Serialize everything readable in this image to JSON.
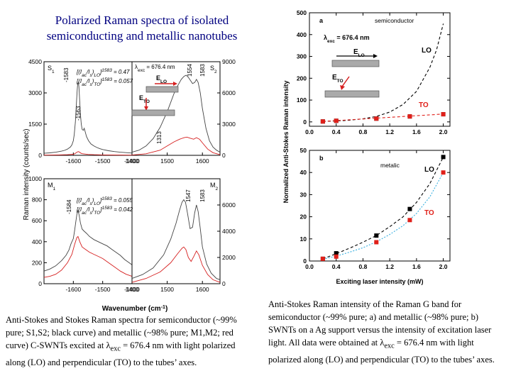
{
  "title_line1": "Polarized Raman spectra of isolated",
  "title_line2": "semiconducting and metallic  nanotubes",
  "caption_left_parts": [
    "Anti-Stokes and Stokes Raman spectra for semiconductor (~99% pure; S1,S2; black curve) and metallic (~98% pure; M1,M2; red curve) C-SWNTs excited at ",
    "λ",
    "exc",
    " = 676.4 nm with light polarized along (LO) and perpendicular (TO) to the tubes’ axes."
  ],
  "caption_right_parts": [
    "Anti-Stokes Raman intensity of the Raman G band for semiconductor (~99% pure; a) and metallic (~98% pure; b) SWNTs on a Ag support versus the intensity of excitation laser light. All data were obtained at ",
    "λ",
    "exc",
    " = 676.4 nm with light polarized along (LO) and perpendicular (TO) to the tubes’ axes."
  ],
  "colors": {
    "black_curve": "#444444",
    "red_curve": "#d62020",
    "title": "#000080",
    "lo_curve": "#000000",
    "to_curve": "#e0201a",
    "to_fit_b": "#3ab0e0"
  },
  "chart_data": [
    {
      "type": "line",
      "panel_label": "S1",
      "ylabel": "Raman intensity (counts/sec)",
      "xlabel": "",
      "xlim": [
        -1700,
        -1400
      ],
      "ylim": [
        0,
        4500
      ],
      "xticks": [
        -1600,
        -1500,
        -1400
      ],
      "yticks": [
        0,
        1500,
        3000,
        4500
      ],
      "peak_labels": [
        "-1583",
        "-1563"
      ],
      "ratio_lines": [
        "[(I",
        "ac",
        "/I",
        "s",
        ")",
        "LO",
        "]",
        "1583",
        " = 0.47",
        "[(I",
        "ac",
        "/I",
        "s",
        ")",
        "TO",
        "]",
        "1583",
        " = 0.057"
      ],
      "series": [
        {
          "color": "black",
          "x": [
            -1700,
            -1680,
            -1660,
            -1640,
            -1630,
            -1620,
            -1610,
            -1605,
            -1600,
            -1597,
            -1593,
            -1590,
            -1587,
            -1585,
            -1583,
            -1581,
            -1579,
            -1576,
            -1573,
            -1570,
            -1566,
            -1563,
            -1560,
            -1555,
            -1548,
            -1540,
            -1530,
            -1520,
            -1510,
            -1500,
            -1480,
            -1460,
            -1440,
            -1420,
            -1400
          ],
          "y": [
            100,
            120,
            150,
            200,
            240,
            300,
            400,
            500,
            700,
            1000,
            1600,
            2400,
            3100,
            3450,
            3500,
            3300,
            2800,
            2000,
            1500,
            1250,
            1200,
            1300,
            1150,
            900,
            700,
            550,
            450,
            380,
            320,
            280,
            220,
            180,
            150,
            130,
            110
          ]
        },
        {
          "color": "red",
          "x": [
            -1700,
            -1650,
            -1620,
            -1600,
            -1595,
            -1590,
            -1585,
            -1583,
            -1580,
            -1575,
            -1570,
            -1560,
            -1550,
            -1530,
            -1500,
            -1450,
            -1400
          ],
          "y": [
            10,
            20,
            30,
            50,
            80,
            130,
            170,
            180,
            160,
            110,
            80,
            60,
            45,
            30,
            20,
            15,
            10
          ]
        }
      ]
    },
    {
      "type": "line",
      "panel_label": "S2",
      "xlim": [
        1400,
        1650
      ],
      "ylim": [
        0,
        9000
      ],
      "xticks": [
        1400,
        1500,
        1600
      ],
      "yticks": [
        0,
        3000,
        6000,
        9000
      ],
      "peak_labels": [
        "1554",
        "1583",
        "1313"
      ],
      "series": [
        {
          "color": "black",
          "x": [
            1400,
            1420,
            1440,
            1460,
            1480,
            1500,
            1510,
            1520,
            1530,
            1540,
            1548,
            1554,
            1560,
            1566,
            1572,
            1578,
            1583,
            1588,
            1594,
            1600,
            1610,
            1620,
            1630,
            1640,
            1650
          ],
          "y": [
            300,
            500,
            900,
            1600,
            2700,
            4200,
            5100,
            6000,
            6700,
            7300,
            7600,
            7700,
            7500,
            7200,
            6900,
            7000,
            7300,
            7000,
            6000,
            4500,
            2600,
            1400,
            800,
            500,
            300
          ]
        },
        {
          "color": "red",
          "x": [
            1400,
            1440,
            1480,
            1500,
            1520,
            1535,
            1548,
            1556,
            1565,
            1575,
            1583,
            1592,
            1600,
            1615,
            1630,
            1650
          ],
          "y": [
            30,
            150,
            500,
            900,
            1300,
            1550,
            1700,
            1750,
            1650,
            1550,
            1700,
            1550,
            1200,
            600,
            250,
            60
          ]
        }
      ]
    },
    {
      "type": "line",
      "panel_label": "M1",
      "xlim": [
        -1700,
        -1400
      ],
      "ylim": [
        0,
        1000
      ],
      "xticks": [
        -1600,
        -1500,
        -1400
      ],
      "yticks": [
        0,
        200,
        400,
        600,
        800,
        1000
      ],
      "peak_labels": [
        "-1584"
      ],
      "ratio_lines": [
        "[(I",
        "ac",
        "/I",
        "s",
        ")",
        "LO",
        "]",
        "1583",
        " = 0.055",
        "[(I",
        "ac",
        "/I",
        "s",
        ")",
        "TO",
        "]",
        "1583",
        " = 0.042"
      ],
      "series": [
        {
          "color": "black",
          "x": [
            -1700,
            -1680,
            -1660,
            -1640,
            -1625,
            -1615,
            -1608,
            -1600,
            -1596,
            -1592,
            -1588,
            -1584,
            -1580,
            -1576,
            -1570,
            -1563,
            -1555,
            -1545,
            -1530,
            -1515,
            -1500,
            -1485,
            -1470,
            -1455,
            -1440,
            -1425,
            -1410,
            -1400
          ],
          "y": [
            120,
            140,
            170,
            220,
            270,
            320,
            380,
            430,
            500,
            580,
            660,
            700,
            650,
            580,
            520,
            500,
            480,
            450,
            420,
            400,
            380,
            360,
            330,
            300,
            270,
            230,
            200,
            180
          ]
        },
        {
          "color": "red",
          "x": [
            -1700,
            -1680,
            -1660,
            -1640,
            -1620,
            -1605,
            -1595,
            -1588,
            -1584,
            -1578,
            -1570,
            -1560,
            -1545,
            -1530,
            -1515,
            -1500,
            -1480,
            -1460,
            -1440,
            -1420,
            -1400
          ],
          "y": [
            60,
            70,
            90,
            130,
            200,
            280,
            380,
            440,
            450,
            400,
            350,
            330,
            300,
            280,
            260,
            240,
            200,
            160,
            120,
            90,
            70
          ]
        }
      ]
    },
    {
      "type": "line",
      "panel_label": "M2",
      "xlim": [
        1400,
        1650
      ],
      "ylim": [
        0,
        8000
      ],
      "xticks": [
        1400,
        1500,
        1600
      ],
      "yticks": [
        0,
        2000,
        4000,
        6000
      ],
      "peak_labels": [
        "1547",
        "1583"
      ],
      "series": [
        {
          "color": "black",
          "x": [
            1400,
            1430,
            1460,
            1490,
            1510,
            1525,
            1535,
            1542,
            1547,
            1552,
            1558,
            1565,
            1572,
            1578,
            1583,
            1588,
            1594,
            1600,
            1612,
            1625,
            1640,
            1650
          ],
          "y": [
            400,
            700,
            1200,
            2200,
            3400,
            4600,
            5600,
            6200,
            6400,
            6200,
            5300,
            4200,
            4300,
            5400,
            6000,
            5500,
            4200,
            2800,
            1500,
            800,
            400,
            300
          ]
        },
        {
          "color": "red",
          "x": [
            1400,
            1440,
            1480,
            1510,
            1530,
            1542,
            1547,
            1553,
            1560,
            1568,
            1576,
            1583,
            1590,
            1600,
            1615,
            1630,
            1650
          ],
          "y": [
            100,
            400,
            900,
            1600,
            2300,
            2700,
            2800,
            2600,
            2000,
            1700,
            2100,
            2500,
            2200,
            1400,
            700,
            300,
            100
          ]
        }
      ]
    },
    {
      "type": "scatter",
      "panel_label": "a",
      "annotation": "semiconductor",
      "lambda_parts": [
        "λ",
        "exc",
        " = 676.4 nm"
      ],
      "xlim": [
        0.0,
        2.1
      ],
      "ylim": [
        -20,
        500
      ],
      "xticks": [
        0.0,
        0.4,
        0.8,
        1.2,
        1.6,
        2.0
      ],
      "xtick_labels": [
        "0.0",
        "0.4",
        "0.8",
        "1.2",
        "1.6",
        "2.0"
      ],
      "yticks": [
        0,
        100,
        200,
        300,
        400,
        500
      ],
      "series": [
        {
          "name": "LO",
          "color": "black",
          "x": [
            0.2,
            0.4,
            1.0,
            1.5,
            2.0
          ],
          "y": [
            2,
            5,
            15,
            25,
            35
          ],
          "fit": "dashed-exponential",
          "fit_x": [
            0.2,
            0.4,
            0.6,
            0.8,
            1.0,
            1.2,
            1.4,
            1.6,
            1.8,
            1.9,
            2.0
          ],
          "fit_y": [
            2,
            4,
            8,
            14,
            25,
            45,
            80,
            140,
            250,
            330,
            450
          ]
        },
        {
          "name": "TO",
          "color": "red",
          "x": [
            0.2,
            0.4,
            1.0,
            1.5,
            2.0
          ],
          "y": [
            2,
            5,
            15,
            25,
            35
          ],
          "fit": "dashed-linear",
          "fit_x": [
            0.2,
            2.0
          ],
          "fit_y": [
            2,
            36
          ]
        }
      ]
    },
    {
      "type": "scatter",
      "panel_label": "b",
      "annotation": "metalic",
      "xlabel": "Exciting laser intensity (mW)",
      "ylabel": "Normalized Anti-Stokes Raman intensity",
      "xlim": [
        0.0,
        2.1
      ],
      "ylim": [
        0,
        50
      ],
      "xticks": [
        0.0,
        0.4,
        0.8,
        1.2,
        1.6,
        2.0
      ],
      "xtick_labels": [
        "0.0",
        "0.4",
        "0.8",
        "1.2",
        "1.6",
        "2.0"
      ],
      "yticks": [
        0,
        10,
        20,
        30,
        40,
        50
      ],
      "series": [
        {
          "name": "LO",
          "color": "black",
          "x": [
            0.2,
            0.4,
            1.0,
            1.5,
            2.0
          ],
          "y": [
            1,
            3.5,
            11.5,
            23.5,
            47
          ],
          "fit": "dashed",
          "fit_x": [
            0.2,
            0.4,
            0.6,
            0.8,
            1.0,
            1.2,
            1.4,
            1.6,
            1.8,
            2.0
          ],
          "fit_y": [
            1,
            3.3,
            5.8,
            8.5,
            11.5,
            15.5,
            20,
            26.5,
            35,
            47
          ]
        },
        {
          "name": "TO",
          "color": "red",
          "x": [
            0.2,
            0.4,
            1.0,
            1.5,
            2.0
          ],
          "y": [
            1,
            2,
            8.5,
            18.5,
            40
          ],
          "fit": "dotted-cyan",
          "fit_x": [
            0.2,
            0.4,
            0.6,
            0.8,
            1.0,
            1.2,
            1.4,
            1.6,
            1.8,
            2.0
          ],
          "fit_y": [
            0.8,
            2.2,
            4.0,
            6.0,
            8.7,
            12,
            16,
            21.5,
            29,
            40
          ]
        }
      ]
    }
  ],
  "shared_xlabel": "Wavenumber (cm",
  "shared_xlabel_sup": "-1",
  "shared_xlabel_end": ")",
  "inset_lambda_parts": [
    "λ",
    "exc",
    " = 676.4 nm"
  ],
  "inset_E_LO": [
    "E",
    "LO"
  ],
  "inset_E_TO": [
    "E",
    "TO"
  ]
}
